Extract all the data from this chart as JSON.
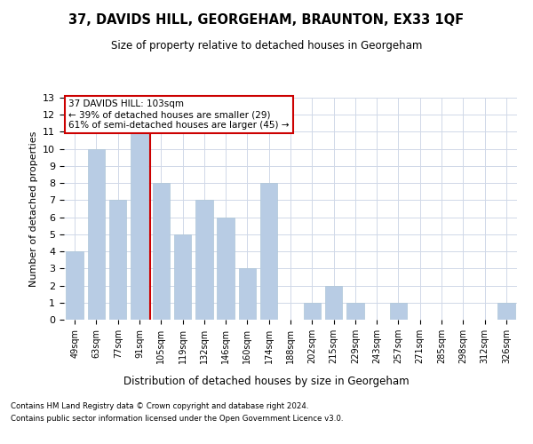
{
  "title": "37, DAVIDS HILL, GEORGEHAM, BRAUNTON, EX33 1QF",
  "subtitle": "Size of property relative to detached houses in Georgeham",
  "xlabel": "Distribution of detached houses by size in Georgeham",
  "ylabel": "Number of detached properties",
  "categories": [
    "49sqm",
    "63sqm",
    "77sqm",
    "91sqm",
    "105sqm",
    "119sqm",
    "132sqm",
    "146sqm",
    "160sqm",
    "174sqm",
    "188sqm",
    "202sqm",
    "215sqm",
    "229sqm",
    "243sqm",
    "257sqm",
    "271sqm",
    "285sqm",
    "298sqm",
    "312sqm",
    "326sqm"
  ],
  "values": [
    4,
    10,
    7,
    11,
    8,
    5,
    7,
    6,
    3,
    8,
    0,
    1,
    2,
    1,
    0,
    1,
    0,
    0,
    0,
    0,
    1
  ],
  "bar_color": "#b8cce4",
  "bar_edgecolor": "#aec6d8",
  "vline_x": 3.5,
  "vline_color": "#cc0000",
  "ylim": [
    0,
    13
  ],
  "yticks": [
    0,
    1,
    2,
    3,
    4,
    5,
    6,
    7,
    8,
    9,
    10,
    11,
    12,
    13
  ],
  "annotation_title": "37 DAVIDS HILL: 103sqm",
  "annotation_line1": "← 39% of detached houses are smaller (29)",
  "annotation_line2": "61% of semi-detached houses are larger (45) →",
  "annotation_box_color": "#ffffff",
  "annotation_box_edgecolor": "#cc0000",
  "footer1": "Contains HM Land Registry data © Crown copyright and database right 2024.",
  "footer2": "Contains public sector information licensed under the Open Government Licence v3.0.",
  "background_color": "#ffffff",
  "grid_color": "#d0d8e8"
}
